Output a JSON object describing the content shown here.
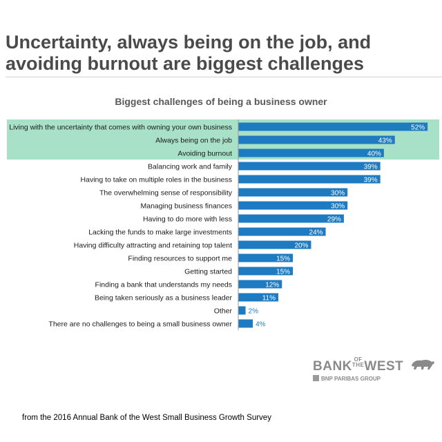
{
  "headline": "Uncertainty, always being on the job, and avoiding burnout are biggest challenges",
  "source": "from the 2016 Annual Bank of the West Small Business Growth Survey",
  "logo": {
    "word_bank": "BANK",
    "word_of": "OF",
    "word_the": "THE",
    "word_west": "WEST",
    "group": "BNP PARIBAS GROUP",
    "icon": "bear-icon"
  },
  "colors": {
    "bar": "#1f7bc1",
    "highlight": "#a8e0c8",
    "value_inside": "#ffffff",
    "value_outside": "#1f7bc1"
  },
  "chart_data": {
    "type": "bar",
    "orientation": "horizontal",
    "title": "Biggest challenges of being a business owner",
    "value_format": "percent",
    "xlim": [
      0,
      55
    ],
    "highlighted_count": 3,
    "categories": [
      "Living with the uncertainty that comes with owning your own business",
      "Always being on the job",
      "Avoiding burnout",
      "Balancing work and family",
      "Having to take on multiple roles in the business",
      "The overwhelming sense of responsibility",
      "Managing business finances",
      "Having to do more with less",
      "Lacking the funds to make large investments",
      "Having difficulty attracting and retaining top talent",
      "Finding resources to support me",
      "Getting started",
      "Finding a bank that understands my needs",
      "Being taken seriously as a business leader",
      "Other",
      "There are no challenges to being a small business owner"
    ],
    "values": [
      52,
      43,
      40,
      39,
      39,
      30,
      30,
      29,
      24,
      20,
      15,
      15,
      12,
      11,
      2,
      4
    ],
    "value_labels": [
      "52%",
      "43%",
      "40%",
      "39%",
      "39%",
      "30%",
      "30%",
      "29%",
      "24%",
      "20%",
      "15%",
      "15%",
      "12%",
      "11%",
      "2%",
      "4%"
    ]
  }
}
